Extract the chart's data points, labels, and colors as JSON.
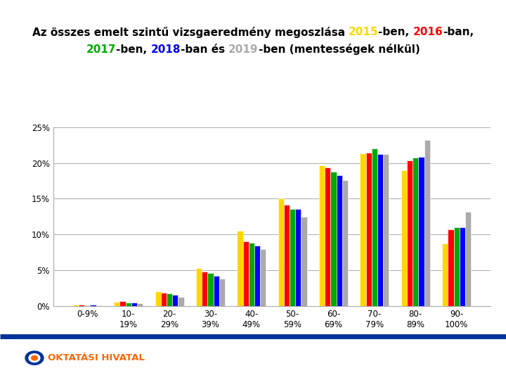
{
  "line1_parts": [
    [
      "Az összes emelt szintű vizsgaeredmény megoszlása ",
      "#000000"
    ],
    [
      "2015",
      "#FFD700"
    ],
    [
      "-ben, ",
      "#000000"
    ],
    [
      "2016",
      "#FF0000"
    ],
    [
      "-ban,",
      "#000000"
    ]
  ],
  "line2_parts": [
    [
      "2017",
      "#00AA00"
    ],
    [
      "-ben, ",
      "#000000"
    ],
    [
      "2018",
      "#0000FF"
    ],
    [
      "-ban és ",
      "#000000"
    ],
    [
      "2019",
      "#AAAAAA"
    ],
    [
      "-ben (mentességek nélkül)",
      "#000000"
    ]
  ],
  "categories": [
    "0-9%",
    "10-\n19%",
    "20-\n29%",
    "30-\n39%",
    "40-\n49%",
    "50-\n59%",
    "60-\n69%",
    "70-\n79%",
    "80-\n89%",
    "90-\n100%"
  ],
  "series": {
    "2015": [
      0.2,
      0.6,
      2.0,
      5.3,
      10.5,
      15.0,
      19.7,
      21.3,
      19.0,
      8.7
    ],
    "2016": [
      0.2,
      0.7,
      1.8,
      4.8,
      9.0,
      14.2,
      19.4,
      21.4,
      20.4,
      10.7
    ],
    "2017": [
      0.1,
      0.5,
      1.7,
      4.6,
      8.8,
      13.6,
      18.8,
      22.0,
      20.8,
      11.0
    ],
    "2018": [
      0.2,
      0.5,
      1.5,
      4.2,
      8.4,
      13.6,
      18.3,
      21.2,
      20.9,
      11.0
    ],
    "2019": [
      0.1,
      0.4,
      1.3,
      3.8,
      7.9,
      12.5,
      17.6,
      21.2,
      23.2,
      13.2
    ]
  },
  "colors": {
    "2015": "#FFD700",
    "2016": "#FF0000",
    "2017": "#00AA00",
    "2018": "#0000FF",
    "2019": "#AAAAAA"
  },
  "ylim": [
    0,
    25
  ],
  "yticks": [
    0,
    5,
    10,
    15,
    20,
    25
  ],
  "background_color": "#FFFFFF",
  "grid_color": "#AAAAAA",
  "bar_width": 0.14,
  "title_fontsize": 11.0,
  "footer_text": "KTATÁSI HIVATAL",
  "footer_full_text": "OKTATÁSI HIVATAL",
  "footer_color": "#FF6600",
  "footer_dot_color": "#003399",
  "separator_color": "#003399",
  "tick_fontsize": 8.5
}
